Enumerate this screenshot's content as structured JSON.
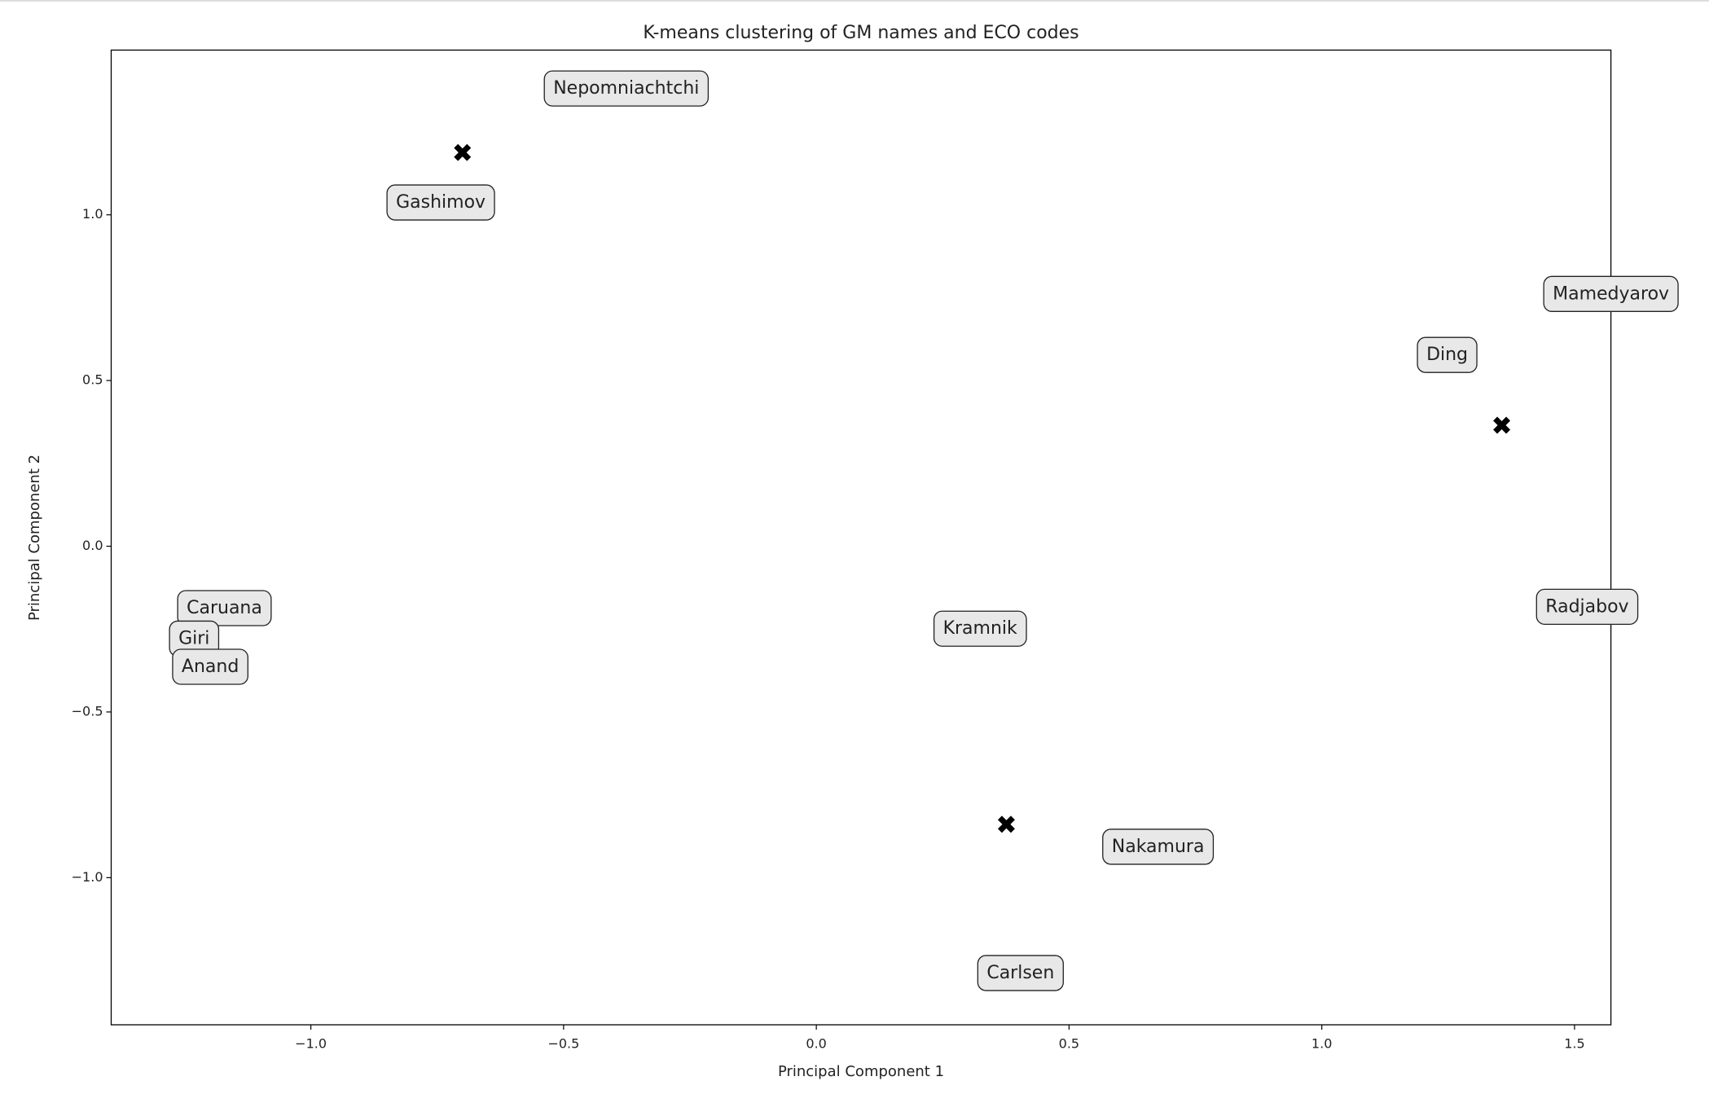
{
  "chart_data": {
    "type": "scatter",
    "title": "K-means clustering of GM names and ECO codes",
    "x_label": "Principal Component 1",
    "y_label": "Principal Component 2",
    "xlim": [
      -1.395,
      1.572
    ],
    "ylim": [
      -1.444,
      1.497
    ],
    "xticks": [
      {
        "value": -1.0,
        "label": "−1.0"
      },
      {
        "value": -0.5,
        "label": "−0.5"
      },
      {
        "value": 0.0,
        "label": "0.0"
      },
      {
        "value": 0.5,
        "label": "0.5"
      },
      {
        "value": 1.0,
        "label": "1.0"
      },
      {
        "value": 1.5,
        "label": "1.5"
      }
    ],
    "yticks": [
      {
        "value": -1.0,
        "label": "−1.0"
      },
      {
        "value": -0.5,
        "label": "−0.5"
      },
      {
        "value": 0.0,
        "label": "0.0"
      },
      {
        "value": 0.5,
        "label": "0.5"
      },
      {
        "value": 1.0,
        "label": "1.0"
      }
    ],
    "points": {
      "labels": [
        "Nepomniachtchi",
        "Gashimov",
        "Mamedyarov",
        "Ding",
        "Caruana",
        "Giri",
        "Anand",
        "Kramnik",
        "Radjabov",
        "Nakamura",
        "Carlsen"
      ],
      "x": [
        -0.376,
        -0.743,
        1.572,
        1.248,
        -1.171,
        -1.231,
        -1.199,
        0.324,
        1.525,
        0.676,
        0.404
      ],
      "y": [
        1.38,
        1.036,
        0.76,
        0.576,
        -0.188,
        -0.28,
        -0.365,
        -0.25,
        -0.184,
        -0.908,
        -1.289
      ],
      "box_color": "#e8e8e8"
    },
    "centroids": {
      "x": [
        -0.7,
        1.356,
        0.376
      ],
      "y": [
        1.188,
        0.365,
        -0.839
      ],
      "color": "#000000"
    }
  }
}
